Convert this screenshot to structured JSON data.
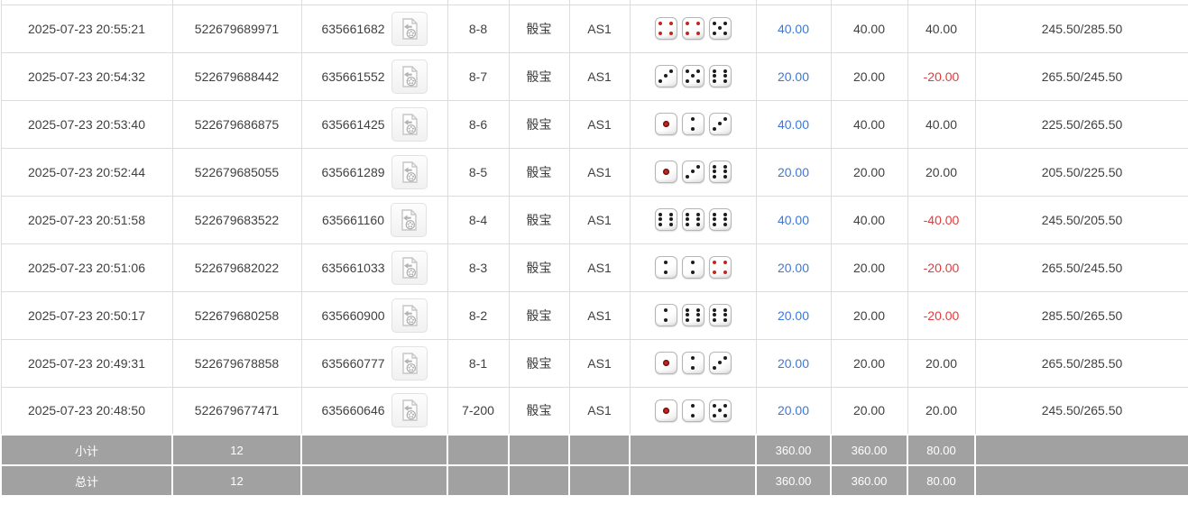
{
  "table": {
    "game_label_note": "dice values 1 and 4 render red per Sic Bo convention",
    "rows": [
      {
        "time": "2025-07-23 20:55:21",
        "bet_id": "522679689971",
        "round_id": "635661682",
        "shoe_round": "8-8",
        "game": "骰宝",
        "table": "AS1",
        "dice": [
          4,
          4,
          5
        ],
        "bet": "40.00",
        "valid": "40.00",
        "win_loss": "40.00",
        "balance": "245.50/285.50"
      },
      {
        "time": "2025-07-23 20:54:32",
        "bet_id": "522679688442",
        "round_id": "635661552",
        "shoe_round": "8-7",
        "game": "骰宝",
        "table": "AS1",
        "dice": [
          3,
          5,
          6
        ],
        "bet": "20.00",
        "valid": "20.00",
        "win_loss": "-20.00",
        "balance": "265.50/245.50"
      },
      {
        "time": "2025-07-23 20:53:40",
        "bet_id": "522679686875",
        "round_id": "635661425",
        "shoe_round": "8-6",
        "game": "骰宝",
        "table": "AS1",
        "dice": [
          1,
          2,
          3
        ],
        "bet": "40.00",
        "valid": "40.00",
        "win_loss": "40.00",
        "balance": "225.50/265.50"
      },
      {
        "time": "2025-07-23 20:52:44",
        "bet_id": "522679685055",
        "round_id": "635661289",
        "shoe_round": "8-5",
        "game": "骰宝",
        "table": "AS1",
        "dice": [
          1,
          3,
          6
        ],
        "bet": "20.00",
        "valid": "20.00",
        "win_loss": "20.00",
        "balance": "205.50/225.50"
      },
      {
        "time": "2025-07-23 20:51:58",
        "bet_id": "522679683522",
        "round_id": "635661160",
        "shoe_round": "8-4",
        "game": "骰宝",
        "table": "AS1",
        "dice": [
          6,
          6,
          6
        ],
        "bet": "40.00",
        "valid": "40.00",
        "win_loss": "-40.00",
        "balance": "245.50/205.50"
      },
      {
        "time": "2025-07-23 20:51:06",
        "bet_id": "522679682022",
        "round_id": "635661033",
        "shoe_round": "8-3",
        "game": "骰宝",
        "table": "AS1",
        "dice": [
          2,
          2,
          4
        ],
        "bet": "20.00",
        "valid": "20.00",
        "win_loss": "-20.00",
        "balance": "265.50/245.50"
      },
      {
        "time": "2025-07-23 20:50:17",
        "bet_id": "522679680258",
        "round_id": "635660900",
        "shoe_round": "8-2",
        "game": "骰宝",
        "table": "AS1",
        "dice": [
          2,
          6,
          6
        ],
        "bet": "20.00",
        "valid": "20.00",
        "win_loss": "-20.00",
        "balance": "285.50/265.50"
      },
      {
        "time": "2025-07-23 20:49:31",
        "bet_id": "522679678858",
        "round_id": "635660777",
        "shoe_round": "8-1",
        "game": "骰宝",
        "table": "AS1",
        "dice": [
          1,
          2,
          3
        ],
        "bet": "20.00",
        "valid": "20.00",
        "win_loss": "20.00",
        "balance": "265.50/285.50"
      },
      {
        "time": "2025-07-23 20:48:50",
        "bet_id": "522679677471",
        "round_id": "635660646",
        "shoe_round": "7-200",
        "game": "骰宝",
        "table": "AS1",
        "dice": [
          1,
          2,
          5
        ],
        "bet": "20.00",
        "valid": "20.00",
        "win_loss": "20.00",
        "balance": "245.50/265.50"
      }
    ]
  },
  "footer": {
    "subtotal": {
      "label": "小计",
      "count": "12",
      "bet": "360.00",
      "valid": "360.00",
      "win_loss": "80.00"
    },
    "total": {
      "label": "总计",
      "count": "12",
      "bet": "360.00",
      "valid": "360.00",
      "win_loss": "80.00"
    }
  },
  "colors": {
    "bet_blue": "#3d78d8",
    "loss_red": "#e03c3c",
    "footer_bg": "#a1a1a1",
    "dice_pip_black": "#1d1d1d",
    "dice_pip_red": "#c0271f",
    "border_gray": "#dcdcdc"
  },
  "icons": {
    "video_replay": "video-file-icon"
  }
}
